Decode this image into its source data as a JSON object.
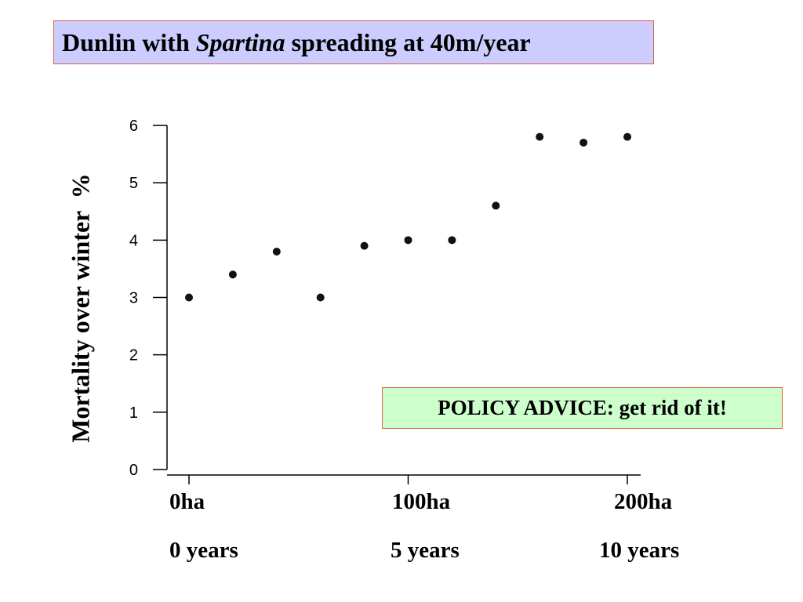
{
  "title": {
    "prefix": "Dunlin with",
    "italic": "Spartina",
    "suffix": "spreading at 40m/year"
  },
  "policy": {
    "text": "POLICY ADVICE: get rid of it!"
  },
  "colors": {
    "title_bg": "#ccccff",
    "policy_bg": "#ccffcc",
    "box_border": "#e06040"
  },
  "chart_data": {
    "type": "scatter",
    "title": "Dunlin with Spartina spreading at 40m/year",
    "ylabel": "Mortality over winter  %",
    "xlabel": "",
    "xlim": [
      0,
      200
    ],
    "ylim": [
      0,
      6
    ],
    "yticks": [
      "0",
      "1",
      "2",
      "3",
      "4",
      "5",
      "6"
    ],
    "xtick_values": [
      0,
      100,
      200
    ],
    "xticklabels_area": [
      "0ha",
      "100ha",
      "200ha"
    ],
    "xticklabels_time": [
      "0 years",
      "5 years",
      "10 years"
    ],
    "grid": false,
    "x": [
      0,
      20,
      40,
      60,
      80,
      100,
      120,
      140,
      160,
      180,
      200
    ],
    "y": [
      3.0,
      3.4,
      3.8,
      3.0,
      3.9,
      4.0,
      4.0,
      4.6,
      5.8,
      5.7,
      5.8
    ]
  }
}
